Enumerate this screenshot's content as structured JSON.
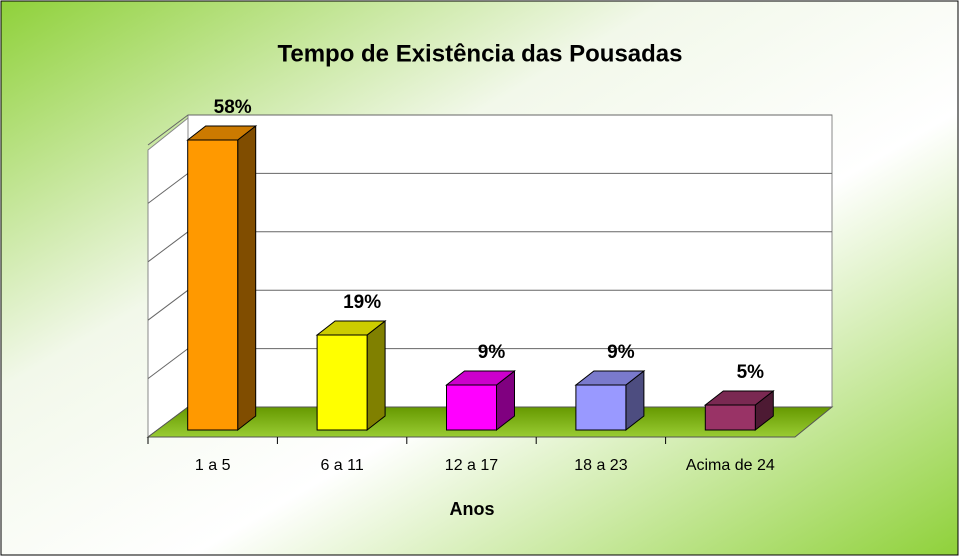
{
  "chart_data": {
    "type": "bar3d",
    "title": "Tempo de Existência das Pousadas",
    "x_label": "Anos",
    "categories": [
      "1 a 5",
      "6 a 11",
      "12 a 17",
      "18 a 23",
      "Acima de 24"
    ],
    "values": [
      58,
      19,
      9,
      9,
      5
    ],
    "value_labels": [
      "58%",
      "19%",
      "9%",
      "9%",
      "5%"
    ],
    "colors": [
      "#ff9900",
      "#ffff00",
      "#ff00ff",
      "#9999ff",
      "#993366"
    ],
    "ylim": [
      0,
      60
    ],
    "yticks": [
      0,
      12,
      24,
      36,
      48,
      60
    ],
    "grid": true
  }
}
